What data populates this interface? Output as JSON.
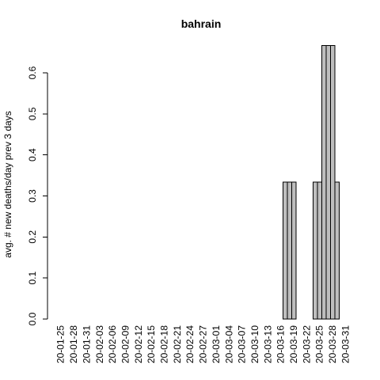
{
  "chart_data": {
    "type": "bar",
    "title": "bahrain",
    "xlabel": "",
    "ylabel": "avg. # new deaths/day prev  3  days",
    "ylim": [
      0,
      0.7
    ],
    "yticks": [
      0.0,
      0.1,
      0.2,
      0.3,
      0.4,
      0.5,
      0.6
    ],
    "ytick_labels": [
      "0.0",
      "0.1",
      "0.2",
      "0.3",
      "0.4",
      "0.5",
      "0.6"
    ],
    "xtick_labels": [
      "20-01-25",
      "20-01-28",
      "20-01-31",
      "20-02-03",
      "20-02-06",
      "20-02-09",
      "20-02-12",
      "20-02-15",
      "20-02-18",
      "20-02-21",
      "20-02-24",
      "20-02-27",
      "20-03-01",
      "20-03-04",
      "20-03-07",
      "20-03-10",
      "20-03-13",
      "20-03-16",
      "20-03-19",
      "20-03-22",
      "20-03-25",
      "20-03-28",
      "20-03-31"
    ],
    "xtick_every": 3,
    "categories": [
      "20-01-25",
      "20-01-26",
      "20-01-27",
      "20-01-28",
      "20-01-29",
      "20-01-30",
      "20-01-31",
      "20-02-01",
      "20-02-02",
      "20-02-03",
      "20-02-04",
      "20-02-05",
      "20-02-06",
      "20-02-07",
      "20-02-08",
      "20-02-09",
      "20-02-10",
      "20-02-11",
      "20-02-12",
      "20-02-13",
      "20-02-14",
      "20-02-15",
      "20-02-16",
      "20-02-17",
      "20-02-18",
      "20-02-19",
      "20-02-20",
      "20-02-21",
      "20-02-22",
      "20-02-23",
      "20-02-24",
      "20-02-25",
      "20-02-26",
      "20-02-27",
      "20-02-28",
      "20-02-29",
      "20-03-01",
      "20-03-02",
      "20-03-03",
      "20-03-04",
      "20-03-05",
      "20-03-06",
      "20-03-07",
      "20-03-08",
      "20-03-09",
      "20-03-10",
      "20-03-11",
      "20-03-12",
      "20-03-13",
      "20-03-14",
      "20-03-15",
      "20-03-16",
      "20-03-17",
      "20-03-18",
      "20-03-19",
      "20-03-20",
      "20-03-21",
      "20-03-22",
      "20-03-23",
      "20-03-24",
      "20-03-25",
      "20-03-26",
      "20-03-27",
      "20-03-28",
      "20-03-29",
      "20-03-30",
      "20-03-31"
    ],
    "values": [
      0,
      0,
      0,
      0,
      0,
      0,
      0,
      0,
      0,
      0,
      0,
      0,
      0,
      0,
      0,
      0,
      0,
      0,
      0,
      0,
      0,
      0,
      0,
      0,
      0,
      0,
      0,
      0,
      0,
      0,
      0,
      0,
      0,
      0,
      0,
      0,
      0,
      0,
      0,
      0,
      0,
      0,
      0,
      0,
      0,
      0,
      0,
      0,
      0,
      0,
      0,
      0,
      0.3333,
      0.3333,
      0.3333,
      0,
      0,
      0,
      0,
      0.3333,
      0.3333,
      0.6667,
      0.6667,
      0.6667,
      0.3333,
      0,
      0
    ]
  }
}
